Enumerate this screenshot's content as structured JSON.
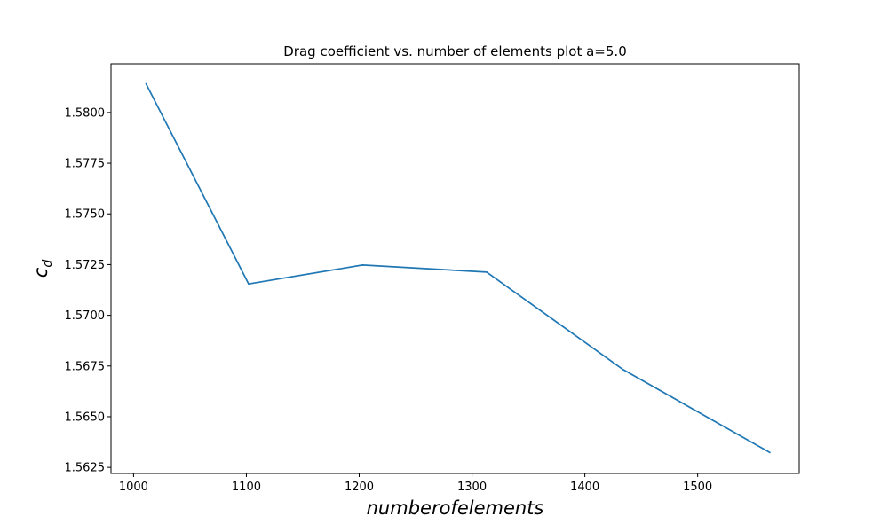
{
  "chart_data": {
    "type": "line",
    "title": "Drag coefficient vs. number of elements plot a=5.0",
    "xlabel": "numberofelements",
    "ylabel": {
      "main": "c",
      "sub": "d"
    },
    "x": [
      1011,
      1102,
      1203,
      1313,
      1434,
      1564
    ],
    "series": [
      {
        "values": [
          1.58142,
          1.57155,
          1.57248,
          1.57213,
          1.56732,
          1.56323
        ],
        "color": "#1f77b4"
      }
    ],
    "xlim": [
      980,
      1590
    ],
    "ylim": [
      1.5622,
      1.5824
    ],
    "xticks": [
      1000,
      1100,
      1200,
      1300,
      1400,
      1500
    ],
    "xtick_labels": [
      "1000",
      "1100",
      "1200",
      "1300",
      "1400",
      "1500"
    ],
    "yticks": [
      1.5625,
      1.565,
      1.5675,
      1.57,
      1.5725,
      1.575,
      1.5775,
      1.58
    ],
    "ytick_labels": [
      "1.5625",
      "1.5650",
      "1.5675",
      "1.5700",
      "1.5725",
      "1.5750",
      "1.5775",
      "1.5800"
    ],
    "grid": false,
    "legend": "none"
  }
}
